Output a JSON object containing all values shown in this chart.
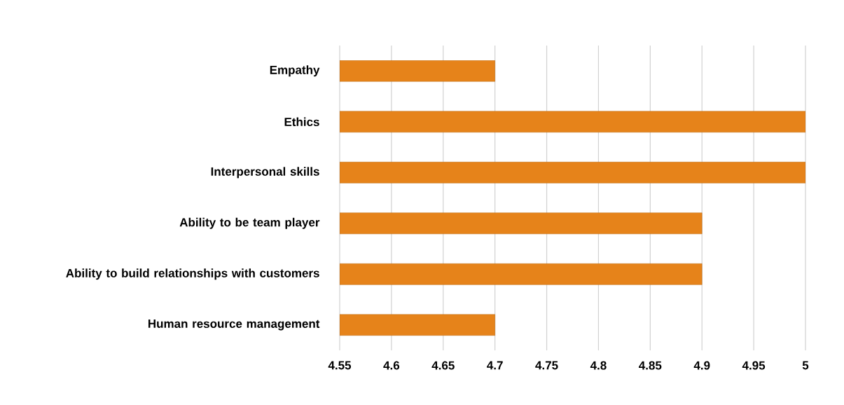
{
  "chart_data": {
    "type": "bar",
    "orientation": "horizontal",
    "categories": [
      "Empathy",
      "Ethics",
      "Interpersonal skills",
      "Ability to be team player",
      "Ability to build relationships with customers",
      "Human resource management"
    ],
    "values": [
      4.7,
      5,
      5,
      4.9,
      4.9,
      4.7
    ],
    "color": "#e6831a",
    "xlim": [
      4.55,
      5
    ],
    "xticks": [
      4.55,
      4.6,
      4.65,
      4.7,
      4.75,
      4.8,
      4.85,
      4.9,
      4.95,
      5
    ],
    "grid": "x"
  }
}
